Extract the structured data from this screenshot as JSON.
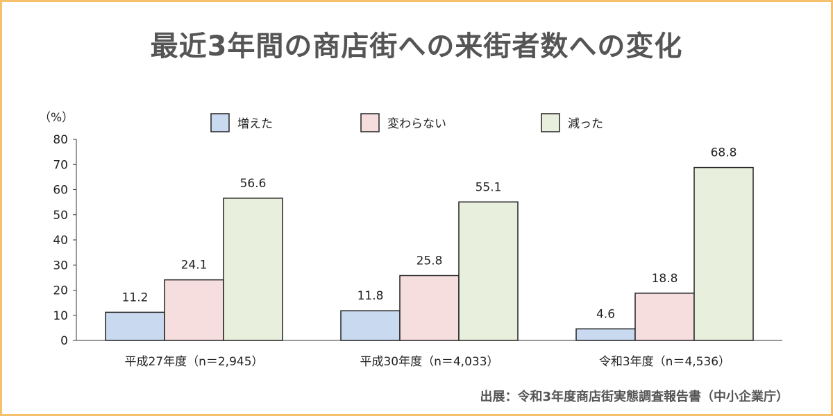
{
  "title": "最近3年間の商店街への来街者数への変化",
  "source": "出展：令和3年度商店街実態調査報告書（中小企業庁）",
  "chart_data": {
    "type": "bar",
    "unit_label": "（%）",
    "categories": [
      "平成27年度（n＝2,945）",
      "平成30年度（n＝4,033）",
      "令和3年度（n＝4,536）"
    ],
    "series": [
      {
        "name": "増えた",
        "values": [
          11.2,
          11.8,
          4.6
        ],
        "color": "#c9d9ef"
      },
      {
        "name": "変わらない",
        "values": [
          24.1,
          25.8,
          18.8
        ],
        "color": "#f5dedd"
      },
      {
        "name": "減った",
        "values": [
          56.6,
          55.1,
          68.8
        ],
        "color": "#e8efdc"
      }
    ],
    "ylim": [
      0,
      80
    ],
    "yticks": [
      0,
      10,
      20,
      30,
      40,
      50,
      60,
      70,
      80
    ],
    "legend_position": "top",
    "grid": false
  }
}
